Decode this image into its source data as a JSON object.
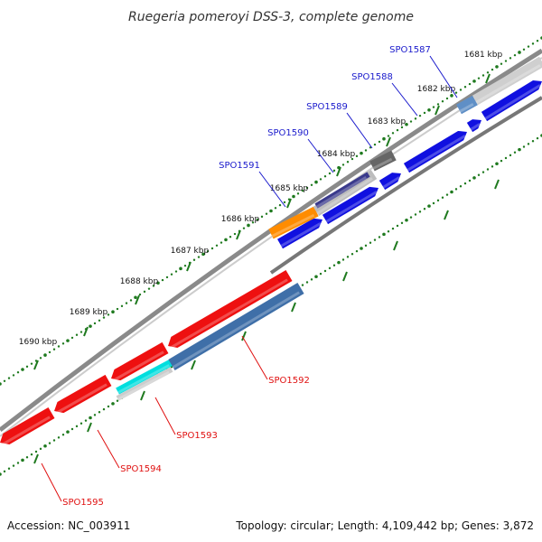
{
  "title": "Ruegeria pomeroyi DSS-3, complete genome",
  "footer": {
    "accession": "Accession: NC_003911",
    "summary": "Topology: circular; Length: 4,109,442 bp; Genes: 3,872"
  },
  "colors": {
    "backbone": "#8a8a8a",
    "tick": "#1f7a1f",
    "forward_label": "#1a1acc",
    "reverse_label": "#e01010",
    "forward_gene": "#1010e0",
    "reverse_gene": "#ee1010",
    "orange_gene": "#ff8c00",
    "indigo_gene": "#3a3a8c",
    "gray_gene": "#666666",
    "steel_gene": "#3f6fa8",
    "cyan_gene": "#00dede",
    "lightblue_gene": "#5f8fc6"
  },
  "kbp_ticks": [
    "1681 kbp",
    "1682 kbp",
    "1683 kbp",
    "1684 kbp",
    "1685 kbp",
    "1686 kbp",
    "1687 kbp",
    "1688 kbp",
    "1689 kbp",
    "1690 kbp"
  ],
  "forward_genes": [
    "SPO1587",
    "SPO1588",
    "SPO1589",
    "SPO1590",
    "SPO1591"
  ],
  "reverse_genes": [
    "SPO1592",
    "SPO1593",
    "SPO1594",
    "SPO1595"
  ]
}
